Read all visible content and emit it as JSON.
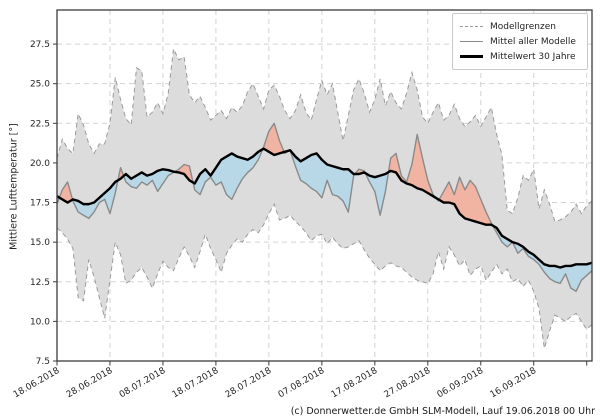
{
  "figure": {
    "ylabel": "Mittlere Lufttemperatur [°]",
    "footer": "(c) Donnerwetter.de GmbH SLM-Modell, Lauf 19.06.2018 00 Uhr",
    "background": "#ffffff"
  },
  "legend": {
    "items": [
      {
        "label": "Modellgrenzen",
        "line_style": "dashed-gray"
      },
      {
        "label": "Mittel aller Modelle",
        "line_style": "solid-gray"
      },
      {
        "label": "Mittelwert 30 Jahre",
        "line_style": "thick-black"
      }
    ]
  },
  "colors": {
    "band_fill": "#dcdcdc",
    "band_edge": "#9a9a9a",
    "warmer_fill": "#f1b4a3",
    "cooler_fill": "#b8d8e8",
    "model_mean_line": "#8a8a8a",
    "mean30_line": "#000000",
    "grid": "#d2d2d2",
    "spine": "#3c3c3c",
    "tick_text": "#262626"
  },
  "chart_data": {
    "type": "line",
    "title": "",
    "xlabel": "",
    "ylabel": "Mittlere Lufttemperatur [°]",
    "x_unit": "days since 18.06.2018",
    "xlim": [
      0,
      101
    ],
    "ylim": [
      7.5,
      29.65
    ],
    "y_ticks": [
      7.5,
      10.0,
      12.5,
      15.0,
      17.5,
      20.0,
      22.5,
      25.0,
      27.5
    ],
    "x_tick_days": [
      0,
      10,
      20,
      30,
      40,
      50,
      60,
      70,
      80,
      90
    ],
    "x_tick_labels": [
      "18.06.2018",
      "28.06.2018",
      "08.07.2018",
      "18.07.2018",
      "28.07.2018",
      "07.08.2018",
      "17.08.2018",
      "27.08.2018",
      "06.09.2018",
      "16.09.2018"
    ],
    "extra_gridline_days": [
      100
    ],
    "grid": true,
    "legend_position": "upper right",
    "series": [
      {
        "name": "Modellgrenzen (obere Grenze)",
        "style": "dashed-gray-band-edge",
        "values": [
          20.3,
          21.5,
          20.9,
          20.6,
          23.1,
          22.4,
          21.2,
          20.6,
          21.2,
          21.2,
          22.5,
          25.4,
          24.0,
          22.8,
          22.4,
          26.0,
          25.8,
          22.9,
          23.2,
          23.8,
          23.1,
          24.4,
          27.2,
          26.5,
          26.7,
          24.3,
          23.8,
          24.2,
          23.5,
          22.7,
          23.0,
          23.3,
          22.8,
          23.5,
          23.2,
          23.6,
          24.5,
          25.0,
          24.2,
          23.4,
          24.6,
          24.9,
          24.2,
          23.3,
          22.8,
          23.3,
          24.3,
          23.2,
          22.7,
          24.0,
          25.2,
          24.3,
          25.0,
          23.2,
          21.4,
          23.0,
          24.6,
          25.3,
          24.4,
          23.2,
          24.0,
          25.3,
          23.6,
          24.5,
          23.8,
          23.4,
          24.4,
          25.7,
          24.6,
          22.9,
          22.5,
          23.2,
          23.8,
          22.7,
          23.0,
          23.7,
          22.8,
          22.3,
          22.6,
          23.0,
          22.3,
          22.9,
          23.5,
          21.8,
          20.5,
          17.0,
          16.8,
          17.8,
          19.2,
          18.9,
          19.6,
          17.1,
          18.3,
          17.4,
          16.3,
          16.4,
          16.6,
          16.9,
          17.4,
          16.8,
          17.3,
          17.6
        ]
      },
      {
        "name": "Modellgrenzen (untere Grenze)",
        "style": "dashed-gray-band-edge",
        "values": [
          15.9,
          15.6,
          15.2,
          14.6,
          11.5,
          11.3,
          13.9,
          12.8,
          11.5,
          10.2,
          12.6,
          15.0,
          14.2,
          12.4,
          12.6,
          13.1,
          13.4,
          12.8,
          12.1,
          13.0,
          13.8,
          13.4,
          13.2,
          14.0,
          14.7,
          14.1,
          13.4,
          14.4,
          15.5,
          14.6,
          13.9,
          13.1,
          14.3,
          14.8,
          15.2,
          15.0,
          15.5,
          15.8,
          15.6,
          16.1,
          16.8,
          17.4,
          16.4,
          16.5,
          16.7,
          16.3,
          16.0,
          15.6,
          15.1,
          15.4,
          15.5,
          14.9,
          15.3,
          14.9,
          14.6,
          14.7,
          14.9,
          15.1,
          14.5,
          14.0,
          13.6,
          13.2,
          13.5,
          13.7,
          13.5,
          13.4,
          13.1,
          12.8,
          12.6,
          12.5,
          12.4,
          13.0,
          14.4,
          13.3,
          14.7,
          14.2,
          13.5,
          13.9,
          12.9,
          13.3,
          13.5,
          12.6,
          13.1,
          13.6,
          13.0,
          13.3,
          12.5,
          12.7,
          12.2,
          12.6,
          11.9,
          10.8,
          8.3,
          9.4,
          10.4,
          10.2,
          10.0,
          10.3,
          10.5,
          10.0,
          9.5,
          9.8
        ]
      },
      {
        "name": "Mittel aller Modelle",
        "style": "solid-gray",
        "values": [
          17.4,
          18.3,
          18.8,
          17.6,
          16.9,
          16.7,
          16.5,
          16.9,
          17.5,
          17.7,
          16.8,
          18.1,
          19.7,
          18.8,
          18.5,
          18.4,
          18.8,
          18.6,
          18.9,
          18.2,
          18.7,
          19.2,
          19.4,
          19.6,
          19.9,
          19.8,
          18.3,
          18.0,
          18.8,
          19.1,
          18.6,
          18.8,
          18.0,
          17.7,
          18.4,
          19.0,
          19.4,
          19.7,
          20.2,
          21.0,
          22.0,
          22.5,
          21.4,
          20.6,
          20.8,
          19.8,
          18.9,
          18.7,
          18.4,
          18.2,
          17.8,
          18.9,
          18.0,
          17.9,
          17.6,
          16.9,
          19.2,
          19.6,
          19.5,
          18.8,
          18.2,
          16.7,
          18.2,
          20.3,
          20.6,
          19.2,
          18.8,
          19.9,
          21.8,
          20.3,
          18.9,
          18.0,
          17.6,
          18.2,
          18.8,
          18.0,
          19.1,
          18.3,
          18.9,
          18.5,
          17.7,
          16.9,
          16.2,
          15.6,
          15.0,
          14.7,
          15.0,
          14.3,
          14.6,
          14.1,
          13.9,
          13.6,
          13.1,
          12.7,
          12.5,
          12.4,
          13.0,
          12.1,
          11.9,
          12.6,
          12.9,
          13.2
        ]
      },
      {
        "name": "Mittelwert 30 Jahre",
        "style": "thick-black",
        "values": [
          17.9,
          17.7,
          17.5,
          17.7,
          17.6,
          17.4,
          17.4,
          17.5,
          17.8,
          18.1,
          18.4,
          18.8,
          19.0,
          19.3,
          19.0,
          19.2,
          19.4,
          19.2,
          19.3,
          19.5,
          19.6,
          19.55,
          19.45,
          19.4,
          19.3,
          18.9,
          18.7,
          19.3,
          19.6,
          19.2,
          19.7,
          20.2,
          20.4,
          20.6,
          20.4,
          20.3,
          20.2,
          20.4,
          20.7,
          20.9,
          20.7,
          20.5,
          20.6,
          20.7,
          20.8,
          20.4,
          20.1,
          20.3,
          20.5,
          20.6,
          20.2,
          19.9,
          19.8,
          19.7,
          19.6,
          19.6,
          19.3,
          19.3,
          19.4,
          19.2,
          19.1,
          19.2,
          19.3,
          19.5,
          19.4,
          18.9,
          18.7,
          18.6,
          18.4,
          18.3,
          18.1,
          17.9,
          17.7,
          17.5,
          17.5,
          17.4,
          16.8,
          16.5,
          16.4,
          16.3,
          16.2,
          16.1,
          16.1,
          15.9,
          15.4,
          15.2,
          15.0,
          14.9,
          14.7,
          14.4,
          14.2,
          13.9,
          13.6,
          13.5,
          13.5,
          13.4,
          13.5,
          13.5,
          13.6,
          13.6,
          13.6,
          13.7
        ]
      }
    ],
    "fills": [
      {
        "kind": "band",
        "between": [
          "Modellgrenzen (obere Grenze)",
          "Modellgrenzen (untere Grenze)"
        ],
        "color_key": "band_fill"
      },
      {
        "kind": "anomaly",
        "between": [
          "Mittel aller Modelle",
          "Mittelwert 30 Jahre"
        ],
        "above_color_key": "warmer_fill",
        "below_color_key": "cooler_fill"
      }
    ]
  }
}
